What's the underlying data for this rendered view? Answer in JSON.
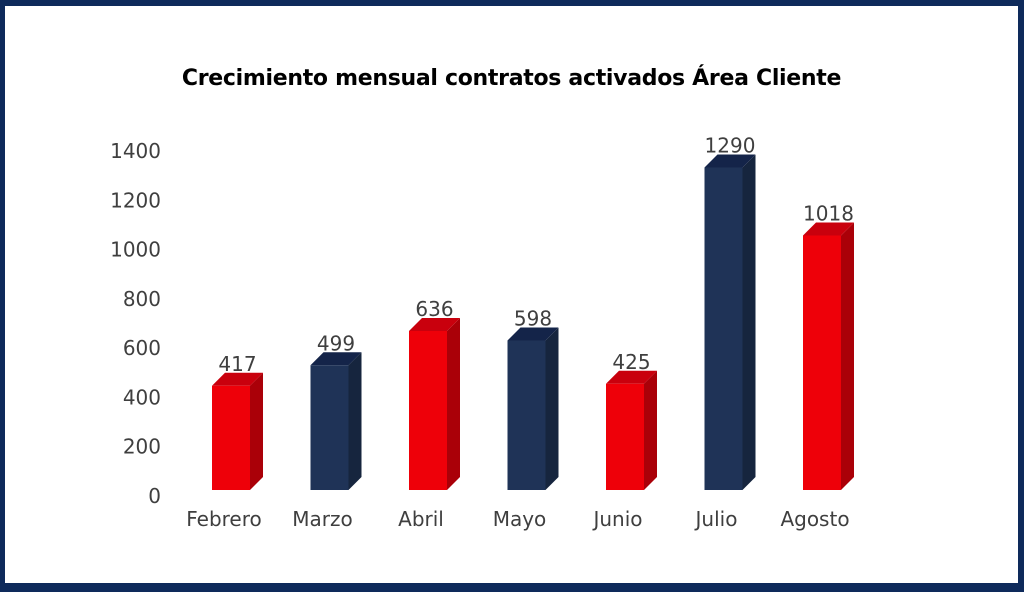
{
  "frame": {
    "border_color": "#0E2A5B",
    "background_color": "#FFFFFF"
  },
  "chart_data": {
    "type": "bar",
    "title": "Crecimiento mensual contratos activados Área Cliente",
    "categories": [
      "Febrero",
      "Marzo",
      "Abril",
      "Mayo",
      "Junio",
      "Julio",
      "Agosto"
    ],
    "values": [
      417,
      499,
      636,
      598,
      425,
      1290,
      1018
    ],
    "bar_colors": [
      "red",
      "navy",
      "red",
      "navy",
      "red",
      "navy",
      "red"
    ],
    "palette": {
      "red": {
        "front": "#EE0009",
        "top": "#C9000D",
        "side": "#AA0008"
      },
      "navy": {
        "front": "#1F3357",
        "top": "#142449",
        "side": "#16253E"
      }
    },
    "y_ticks": [
      0,
      200,
      400,
      600,
      800,
      1000,
      1200,
      1400
    ],
    "ylim": [
      0,
      1400
    ],
    "xlabel": "",
    "ylabel": "",
    "grid": false,
    "legend": false,
    "effect": "3d",
    "label_color": "#3F3F3F",
    "title_color": "#000000"
  }
}
